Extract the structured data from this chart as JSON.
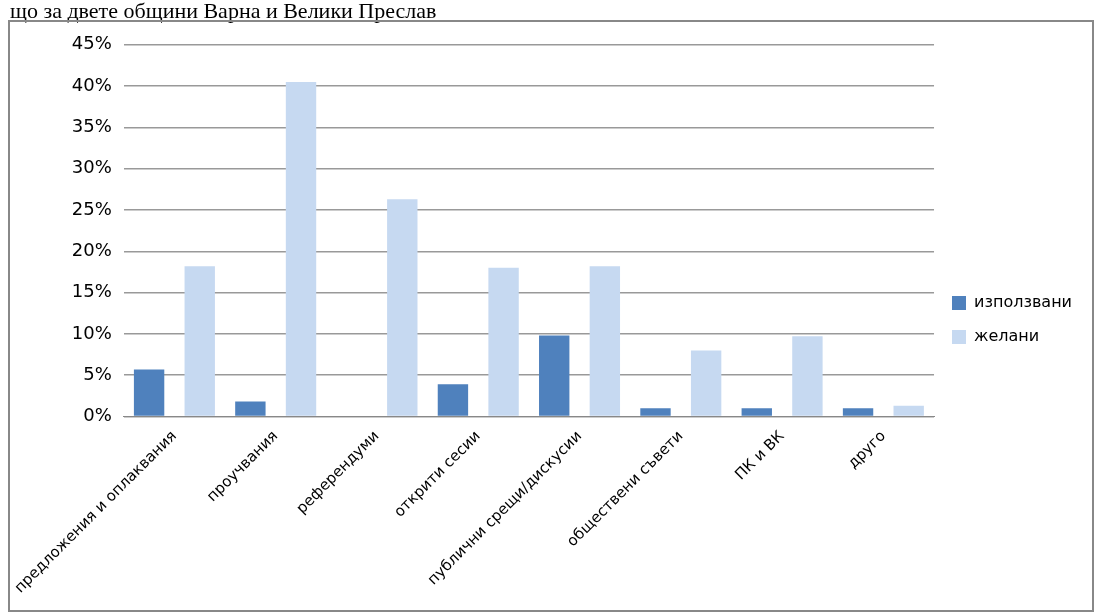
{
  "chart_data": {
    "type": "bar",
    "title": "що за двете общини Варна и Велики Преслав",
    "categories": [
      "предложения и оплаквания",
      "проучвания",
      "референдуми",
      "открити сесии",
      "публични срещи/дискусии",
      "обществени съвети",
      "ПК и ВК",
      "друго"
    ],
    "series": [
      {
        "name": "използвани",
        "color": "#4f81bd",
        "values": [
          5.7,
          1.8,
          0,
          3.9,
          9.8,
          1,
          1,
          1
        ]
      },
      {
        "name": "желани",
        "color": "#c6d9f1",
        "values": [
          18.2,
          40.5,
          26.3,
          18,
          18.2,
          8,
          9.7,
          1.3
        ]
      }
    ],
    "ylim": [
      0,
      45
    ],
    "yticks": [
      {
        "value": 0,
        "label": "0%"
      },
      {
        "value": 5,
        "label": "5%"
      },
      {
        "value": 10,
        "label": "10%"
      },
      {
        "value": 15,
        "label": "15%"
      },
      {
        "value": 20,
        "label": "20%"
      },
      {
        "value": 25,
        "label": "25%"
      },
      {
        "value": 30,
        "label": "30%"
      },
      {
        "value": 35,
        "label": "35%"
      },
      {
        "value": 40,
        "label": "40%"
      },
      {
        "value": 45,
        "label": "45%"
      }
    ],
    "grid": "y",
    "legend": "right"
  }
}
